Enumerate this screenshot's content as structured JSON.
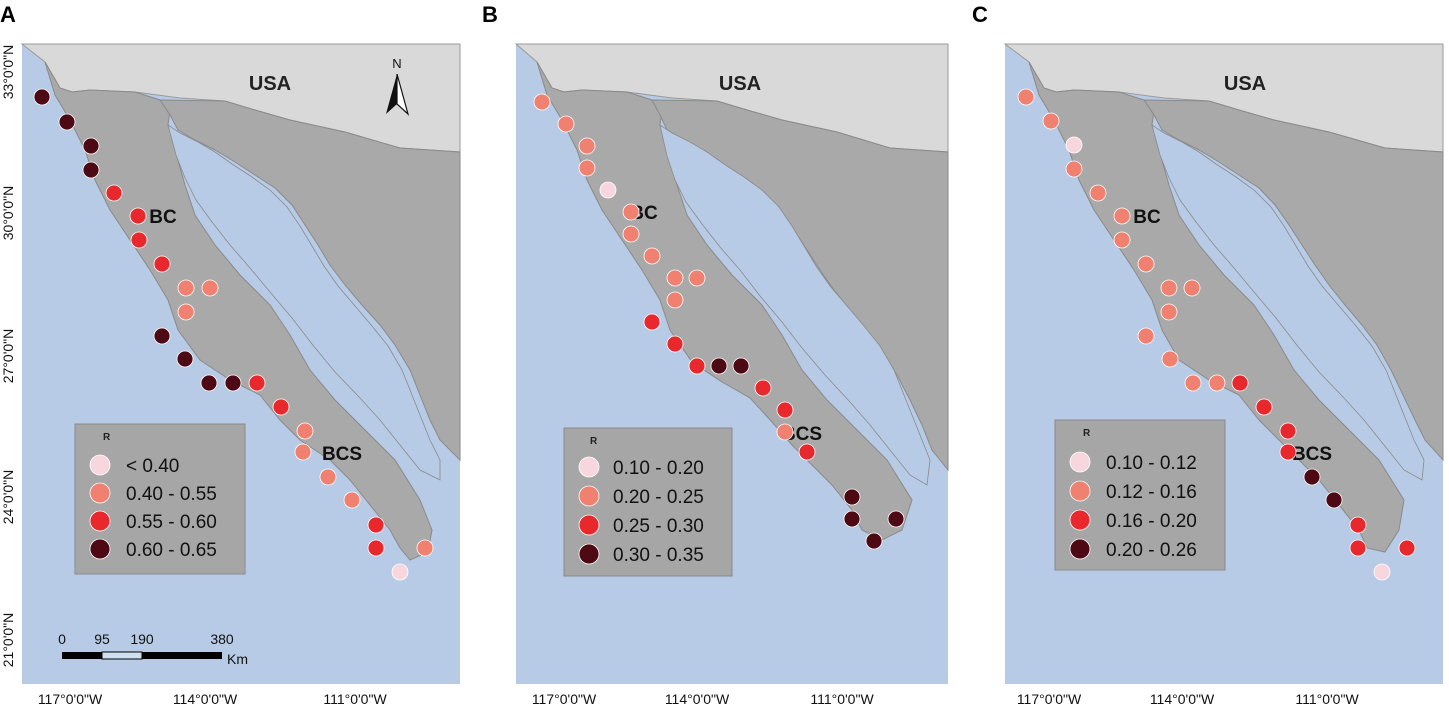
{
  "figure": {
    "panels": [
      {
        "letter": "A",
        "country": "USA",
        "regions": [
          "BC",
          "BCS"
        ],
        "north_label": "N",
        "lat_labels": [
          "33°0'0\"N",
          "30°0'0\"N",
          "27°0'0\"N",
          "24°0'0\"N",
          "21°0'0\"N"
        ],
        "lon_labels": [
          "117°0'0\"W",
          "114°0'0\"W",
          "111°0'0\"W"
        ],
        "legend": {
          "title": "R",
          "classes": [
            {
              "label": "< 0.40",
              "color": "#f7d6de"
            },
            {
              "label": "0.40 - 0.55",
              "color": "#f08070"
            },
            {
              "label": "0.55 - 0.60",
              "color": "#e8282c"
            },
            {
              "label": "0.60 - 0.65",
              "color": "#4e0a14"
            }
          ]
        },
        "scale_bar": {
          "ticks": [
            "0",
            "95",
            "190",
            "380"
          ],
          "unit": "Km"
        },
        "station_classes": [
          3,
          3,
          3,
          3,
          2,
          2,
          2,
          2,
          1,
          1,
          1,
          3,
          3,
          3,
          3,
          2,
          2,
          1,
          1,
          1,
          1,
          2,
          2,
          1,
          0
        ]
      },
      {
        "letter": "B",
        "country": "USA",
        "regions": [
          "BC",
          "BCS"
        ],
        "lat_labels": [],
        "lon_labels": [
          "117°0'0\"W",
          "114°0'0\"W",
          "111°0'0\"W"
        ],
        "legend": {
          "title": "R",
          "classes": [
            {
              "label": "0.10 - 0.20",
              "color": "#f7d6de"
            },
            {
              "label": "0.20 - 0.25",
              "color": "#f08070"
            },
            {
              "label": "0.25 - 0.30",
              "color": "#e8282c"
            },
            {
              "label": "0.30 - 0.35",
              "color": "#4e0a14"
            }
          ]
        },
        "station_classes": [
          1,
          1,
          1,
          1,
          0,
          1,
          1,
          1,
          1,
          1,
          1,
          2,
          2,
          2,
          3,
          3,
          2,
          2,
          1,
          2,
          3,
          3,
          3,
          3
        ]
      },
      {
        "letter": "C",
        "country": "USA",
        "regions": [
          "BC",
          "BCS"
        ],
        "lat_labels": [],
        "lon_labels": [
          "117°0'0\"W",
          "114°0'0\"W",
          "111°0'0\"W"
        ],
        "legend": {
          "title": "R",
          "classes": [
            {
              "label": "0.10 - 0.12",
              "color": "#f7d6de"
            },
            {
              "label": "0.12 - 0.16",
              "color": "#f08070"
            },
            {
              "label": "0.16 - 0.20",
              "color": "#e8282c"
            },
            {
              "label": "0.20 - 0.26",
              "color": "#4e0a14"
            }
          ]
        },
        "station_classes": [
          1,
          1,
          0,
          1,
          1,
          1,
          1,
          1,
          1,
          1,
          1,
          1,
          1,
          1,
          1,
          2,
          2,
          2,
          2,
          3,
          3,
          2,
          2,
          2,
          0
        ]
      }
    ]
  }
}
